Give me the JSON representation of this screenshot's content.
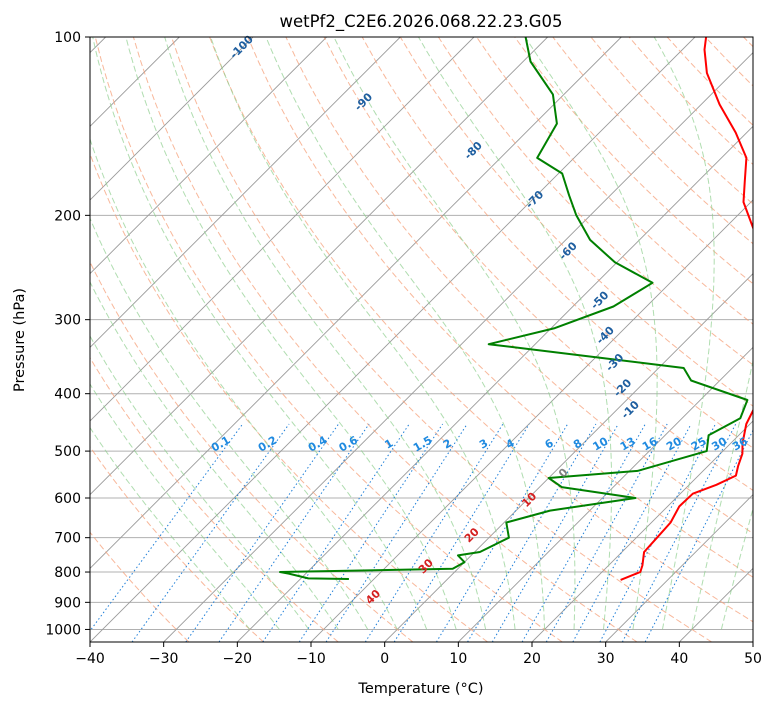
{
  "chart_data": {
    "type": "line",
    "title": "wetPf2_C2E6.2026.068.22.23.G05",
    "xlabel": "Temperature (°C)",
    "ylabel": "Pressure (hPa)",
    "xlim": [
      -40,
      50
    ],
    "ylim": [
      1050,
      100
    ],
    "y_scale": "log",
    "x_ticks": [
      -40,
      -30,
      -20,
      -10,
      0,
      10,
      20,
      30,
      40,
      50
    ],
    "x_tick_labels": [
      "−40",
      "−30",
      "−20",
      "−10",
      "0",
      "10",
      "20",
      "30",
      "40",
      "50"
    ],
    "y_ticks": [
      100,
      200,
      300,
      400,
      500,
      600,
      700,
      800,
      900,
      1000
    ],
    "y_tick_labels": [
      "100",
      "200",
      "300",
      "400",
      "500",
      "600",
      "700",
      "800",
      "900",
      "1000"
    ],
    "grid": true,
    "skew": "skew-T log-P diagram",
    "series": [
      {
        "role": "temperature",
        "color": "#ff0000",
        "points": [
          [
            825,
            23.6
          ],
          [
            800,
            25.2
          ],
          [
            780,
            24.6
          ],
          [
            740,
            23.0
          ],
          [
            700,
            22.8
          ],
          [
            660,
            22.6
          ],
          [
            620,
            21.6
          ],
          [
            590,
            21.7
          ],
          [
            570,
            23.7
          ],
          [
            550,
            25.1
          ],
          [
            530,
            24.1
          ],
          [
            505,
            23.0
          ],
          [
            485,
            21.6
          ],
          [
            450,
            19.5
          ],
          [
            420,
            18.3
          ],
          [
            400,
            17.3
          ],
          [
            375,
            17.4
          ],
          [
            350,
            16.2
          ],
          [
            320,
            12.1
          ],
          [
            290,
            7.1
          ],
          [
            260,
            3.0
          ],
          [
            230,
            -1.5
          ],
          [
            210,
            -6.2
          ],
          [
            190,
            -11.0
          ],
          [
            175,
            -13.7
          ],
          [
            160,
            -16.6
          ],
          [
            145,
            -21.5
          ],
          [
            130,
            -27.5
          ],
          [
            115,
            -33.5
          ],
          [
            105,
            -37.0
          ],
          [
            100,
            -38.5
          ]
        ]
      },
      {
        "role": "dewpoint",
        "color": "#008000",
        "points": [
          [
            822,
            -13.4
          ],
          [
            820,
            -19.0
          ],
          [
            805,
            -22.3
          ],
          [
            800,
            -23.7
          ],
          [
            790,
            -0.7
          ],
          [
            770,
            0.0
          ],
          [
            750,
            -1.8
          ],
          [
            740,
            0.7
          ],
          [
            700,
            2.7
          ],
          [
            660,
            0.3
          ],
          [
            630,
            4.6
          ],
          [
            600,
            14.5
          ],
          [
            575,
            3.0
          ],
          [
            555,
            0.0
          ],
          [
            540,
            11.1
          ],
          [
            500,
            17.8
          ],
          [
            470,
            15.9
          ],
          [
            440,
            17.9
          ],
          [
            410,
            16.4
          ],
          [
            380,
            6.1
          ],
          [
            362,
            3.4
          ],
          [
            345,
            -12.0
          ],
          [
            330,
            -26.3
          ],
          [
            310,
            -19.5
          ],
          [
            285,
            -14.5
          ],
          [
            260,
            -12.4
          ],
          [
            240,
            -20.3
          ],
          [
            220,
            -26.7
          ],
          [
            200,
            -31.9
          ],
          [
            185,
            -35.6
          ],
          [
            170,
            -39.5
          ],
          [
            160,
            -45.0
          ],
          [
            140,
            -47.0
          ],
          [
            125,
            -51.5
          ],
          [
            110,
            -59.0
          ],
          [
            100,
            -63.0
          ]
        ]
      }
    ],
    "dry_adiabat_labels": [
      "-100",
      "-90",
      "-80",
      "-70",
      "-60",
      "-50",
      "-40",
      "-30",
      "-20",
      "-10",
      "0",
      "10",
      "20",
      "30",
      "40"
    ],
    "mixing_ratio_labels": [
      "0.1",
      "0.2",
      "0.4",
      "0.6",
      "1",
      "1.5",
      "2",
      "3",
      "4",
      "6",
      "8",
      "10",
      "13",
      "16",
      "20",
      "25",
      "30",
      "36"
    ],
    "background_line_colors": {
      "isotherm": "#9a9a9a",
      "dry_adiabat": "#f5a07a",
      "moist_adiabat": "#8fcf8f",
      "mixing_ratio": "#1f7fd8",
      "dry_adiabat_label": "#1f5fa0",
      "warm_adiabat_label": "#d42020",
      "zero_label": "#808080",
      "mixing_label": "#1f8ae0"
    }
  }
}
